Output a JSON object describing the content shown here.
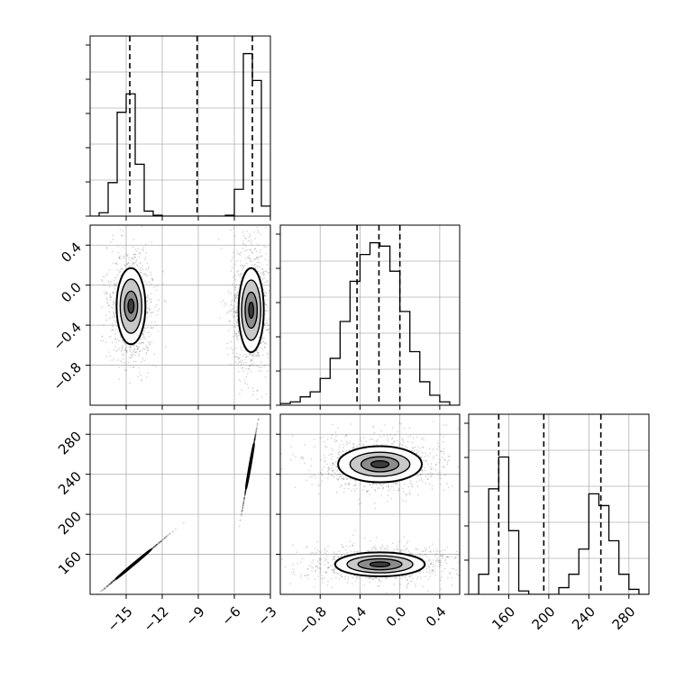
{
  "chart_data": {
    "type": "corner",
    "parameters": [
      {
        "range": [
          -18,
          -3
        ],
        "ticks": [
          -15,
          -12,
          -9,
          -6,
          -3
        ],
        "tick_labels": [
          "−15",
          "−12",
          "−9",
          "−6",
          "−3"
        ],
        "quantiles": [
          -14.7,
          -9.1,
          -4.5
        ],
        "histogram": {
          "edges": [
            -18,
            -17.25,
            -16.5,
            -15.75,
            -15,
            -14.25,
            -13.5,
            -12.75,
            -12,
            -11.25,
            -10.5,
            -9.75,
            -9,
            -8.25,
            -7.5,
            -6.75,
            -6,
            -5.25,
            -4.5,
            -3.75,
            -3
          ],
          "counts": [
            0,
            0.02,
            0.2,
            0.62,
            0.73,
            0.31,
            0.03,
            0.005,
            0,
            0,
            0,
            0,
            0,
            0,
            0,
            0.005,
            0.16,
            0.97,
            0.81,
            0.06
          ]
        }
      },
      {
        "range": [
          -1.2,
          0.6
        ],
        "ticks": [
          -0.8,
          -0.4,
          0.0,
          0.4
        ],
        "tick_labels": [
          "−0.8",
          "−0.4",
          "0.0",
          "0.4"
        ],
        "quantiles": [
          -0.43,
          -0.21,
          0.0
        ],
        "histogram": {
          "edges": [
            -1.2,
            -1.1,
            -1.0,
            -0.9,
            -0.8,
            -0.7,
            -0.6,
            -0.5,
            -0.4,
            -0.3,
            -0.2,
            -0.1,
            0.0,
            0.1,
            0.2,
            0.3,
            0.4,
            0.5,
            0.6
          ],
          "counts": [
            0.01,
            0.02,
            0.05,
            0.08,
            0.16,
            0.28,
            0.5,
            0.74,
            0.9,
            0.97,
            0.95,
            0.8,
            0.56,
            0.32,
            0.14,
            0.06,
            0.02,
            0
          ]
        }
      },
      {
        "range": [
          120,
          300
        ],
        "ticks": [
          160,
          200,
          240,
          280
        ],
        "tick_labels": [
          "160",
          "200",
          "240",
          "280"
        ],
        "quantiles": [
          150,
          195,
          252
        ],
        "histogram": {
          "edges": [
            120,
            130,
            140,
            150,
            160,
            170,
            180,
            190,
            200,
            210,
            220,
            230,
            240,
            250,
            260,
            270,
            280,
            290,
            300
          ],
          "counts": [
            0,
            0.12,
            0.63,
            0.82,
            0.38,
            0.02,
            0,
            0,
            0,
            0.04,
            0.12,
            0.27,
            0.6,
            0.53,
            0.32,
            0.12,
            0.03,
            0
          ]
        }
      }
    ],
    "pairs": [
      {
        "x": 0,
        "y": 1,
        "clusters": [
          {
            "center": [
              -14.6,
              -0.21
            ],
            "levels": [
              [
                1.2,
                0.38
              ],
              [
                0.9,
                0.27
              ],
              [
                0.55,
                0.15
              ],
              [
                0.25,
                0.07
              ]
            ]
          },
          {
            "center": [
              -4.6,
              -0.25
            ],
            "levels": [
              [
                1.05,
                0.42
              ],
              [
                0.8,
                0.3
              ],
              [
                0.5,
                0.18
              ],
              [
                0.2,
                0.08
              ]
            ]
          }
        ]
      },
      {
        "x": 0,
        "y": 2,
        "clusters": [
          {
            "center": [
              -14.4,
              150
            ],
            "angle": 40,
            "levels": [
              [
                1.9,
                0.7
              ],
              [
                1.3,
                0.5
              ],
              [
                0.8,
                0.3
              ],
              [
                0.35,
                0.15
              ]
            ]
          },
          {
            "center": [
              -4.7,
              248
            ],
            "angle": 80,
            "levels": [
              [
                1.9,
                0.65
              ],
              [
                1.3,
                0.45
              ],
              [
                0.8,
                0.28
              ],
              [
                0.35,
                0.12
              ]
            ]
          }
        ]
      },
      {
        "x": 1,
        "y": 2,
        "clusters": [
          {
            "center": [
              -0.2,
              250
            ],
            "levels": [
              [
                0.42,
                18
              ],
              [
                0.3,
                12
              ],
              [
                0.19,
                7.5
              ],
              [
                0.09,
                3.5
              ]
            ]
          },
          {
            "center": [
              -0.2,
              150
            ],
            "levels": [
              [
                0.45,
                12
              ],
              [
                0.33,
                8.5
              ],
              [
                0.22,
                5.5
              ],
              [
                0.1,
                2.5
              ]
            ]
          }
        ]
      }
    ],
    "grid": true,
    "legend": false
  }
}
